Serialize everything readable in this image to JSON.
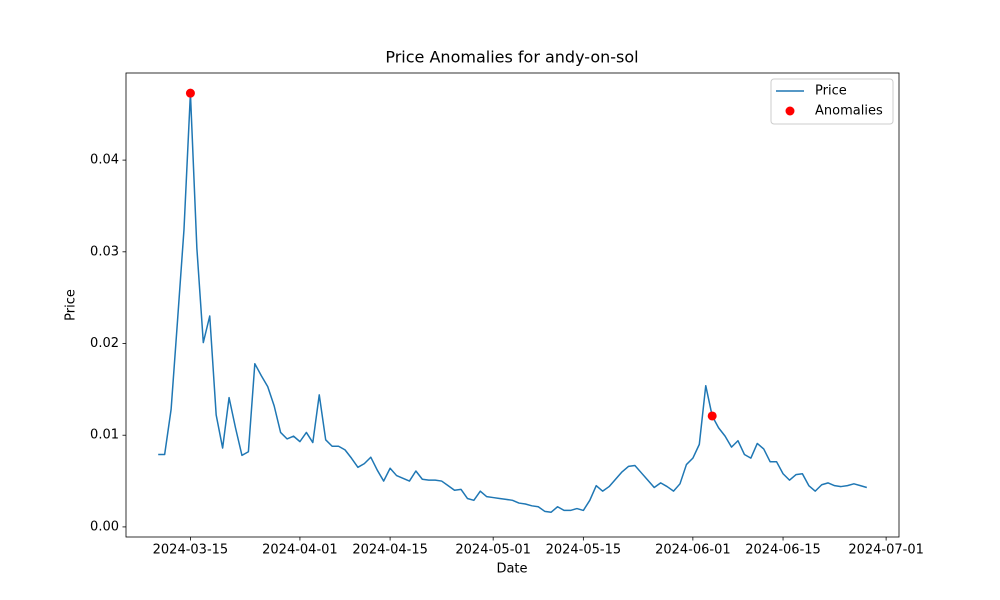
{
  "chart_data": {
    "type": "line",
    "title": "Price Anomalies for andy-on-sol",
    "x_label": "Date",
    "y_label": "Price",
    "x": [
      "2024-03-10",
      "2024-03-11",
      "2024-03-12",
      "2024-03-13",
      "2024-03-14",
      "2024-03-15",
      "2024-03-16",
      "2024-03-17",
      "2024-03-18",
      "2024-03-19",
      "2024-03-20",
      "2024-03-21",
      "2024-03-22",
      "2024-03-23",
      "2024-03-24",
      "2024-03-25",
      "2024-03-26",
      "2024-03-27",
      "2024-03-28",
      "2024-03-29",
      "2024-03-30",
      "2024-03-31",
      "2024-04-01",
      "2024-04-02",
      "2024-04-03",
      "2024-04-04",
      "2024-04-05",
      "2024-04-06",
      "2024-04-07",
      "2024-04-08",
      "2024-04-09",
      "2024-04-10",
      "2024-04-11",
      "2024-04-12",
      "2024-04-13",
      "2024-04-14",
      "2024-04-15",
      "2024-04-16",
      "2024-04-17",
      "2024-04-18",
      "2024-04-19",
      "2024-04-20",
      "2024-04-21",
      "2024-04-22",
      "2024-04-23",
      "2024-04-24",
      "2024-04-25",
      "2024-04-26",
      "2024-04-27",
      "2024-04-28",
      "2024-04-29",
      "2024-04-30",
      "2024-05-01",
      "2024-05-02",
      "2024-05-03",
      "2024-05-04",
      "2024-05-05",
      "2024-05-06",
      "2024-05-07",
      "2024-05-08",
      "2024-05-09",
      "2024-05-10",
      "2024-05-11",
      "2024-05-12",
      "2024-05-13",
      "2024-05-14",
      "2024-05-15",
      "2024-05-16",
      "2024-05-17",
      "2024-05-18",
      "2024-05-19",
      "2024-05-20",
      "2024-05-21",
      "2024-05-22",
      "2024-05-23",
      "2024-05-24",
      "2024-05-25",
      "2024-05-26",
      "2024-05-27",
      "2024-05-28",
      "2024-05-29",
      "2024-05-30",
      "2024-05-31",
      "2024-06-01",
      "2024-06-02",
      "2024-06-03",
      "2024-06-04",
      "2024-06-05",
      "2024-06-06",
      "2024-06-07",
      "2024-06-08",
      "2024-06-09",
      "2024-06-10",
      "2024-06-11",
      "2024-06-12",
      "2024-06-13",
      "2024-06-14",
      "2024-06-15",
      "2024-06-16",
      "2024-06-17",
      "2024-06-18",
      "2024-06-19",
      "2024-06-20",
      "2024-06-21",
      "2024-06-22",
      "2024-06-23",
      "2024-06-24",
      "2024-06-25",
      "2024-06-26",
      "2024-06-27",
      "2024-06-28"
    ],
    "series": [
      {
        "name": "Price",
        "type": "line",
        "color": "#1f77b4",
        "values": [
          0.0079,
          0.0079,
          0.0128,
          0.0225,
          0.0324,
          0.0473,
          0.0304,
          0.0201,
          0.023,
          0.0122,
          0.0086,
          0.0141,
          0.0108,
          0.0078,
          0.0082,
          0.0178,
          0.0165,
          0.0153,
          0.0132,
          0.0103,
          0.0096,
          0.0099,
          0.0093,
          0.0103,
          0.0092,
          0.0144,
          0.0095,
          0.0088,
          0.0088,
          0.0084,
          0.0075,
          0.0065,
          0.0069,
          0.0076,
          0.0062,
          0.005,
          0.0064,
          0.0056,
          0.0053,
          0.005,
          0.0061,
          0.0052,
          0.0051,
          0.0051,
          0.005,
          0.0045,
          0.004,
          0.0041,
          0.0031,
          0.0029,
          0.0039,
          0.0033,
          0.0032,
          0.0031,
          0.003,
          0.0029,
          0.0026,
          0.0025,
          0.0023,
          0.0022,
          0.0017,
          0.0016,
          0.0022,
          0.0018,
          0.0018,
          0.002,
          0.0018,
          0.0029,
          0.0045,
          0.0039,
          0.0044,
          0.0052,
          0.006,
          0.0066,
          0.0067,
          0.0059,
          0.0051,
          0.0043,
          0.0048,
          0.0044,
          0.0039,
          0.0047,
          0.0068,
          0.0075,
          0.009,
          0.0154,
          0.0121,
          0.0108,
          0.0099,
          0.0087,
          0.0094,
          0.0079,
          0.0075,
          0.0091,
          0.0085,
          0.0071,
          0.0071,
          0.0058,
          0.0051,
          0.0057,
          0.0058,
          0.0045,
          0.0039,
          0.0046,
          0.0048,
          0.0045,
          0.0044,
          0.0045,
          0.0047,
          0.0045,
          0.0043
        ]
      },
      {
        "name": "Anomalies",
        "type": "scatter",
        "color": "#ff0000",
        "x": [
          "2024-03-15",
          "2024-06-04"
        ],
        "values": [
          0.0473,
          0.0121
        ]
      }
    ],
    "xlim": [
      "2024-03-05",
      "2024-07-03"
    ],
    "xticks": [
      "2024-03-15",
      "2024-04-01",
      "2024-04-15",
      "2024-05-01",
      "2024-05-15",
      "2024-06-01",
      "2024-06-15",
      "2024-07-01"
    ],
    "ylim": [
      -0.0011,
      0.0495
    ],
    "yticks": [
      {
        "value": 0,
        "label": "0.00"
      },
      {
        "value": 0.01,
        "label": "0.01"
      },
      {
        "value": 0.02,
        "label": "0.02"
      },
      {
        "value": 0.03,
        "label": "0.03"
      },
      {
        "value": 0.04,
        "label": "0.04"
      }
    ],
    "grid": false,
    "legend": "upper right"
  }
}
